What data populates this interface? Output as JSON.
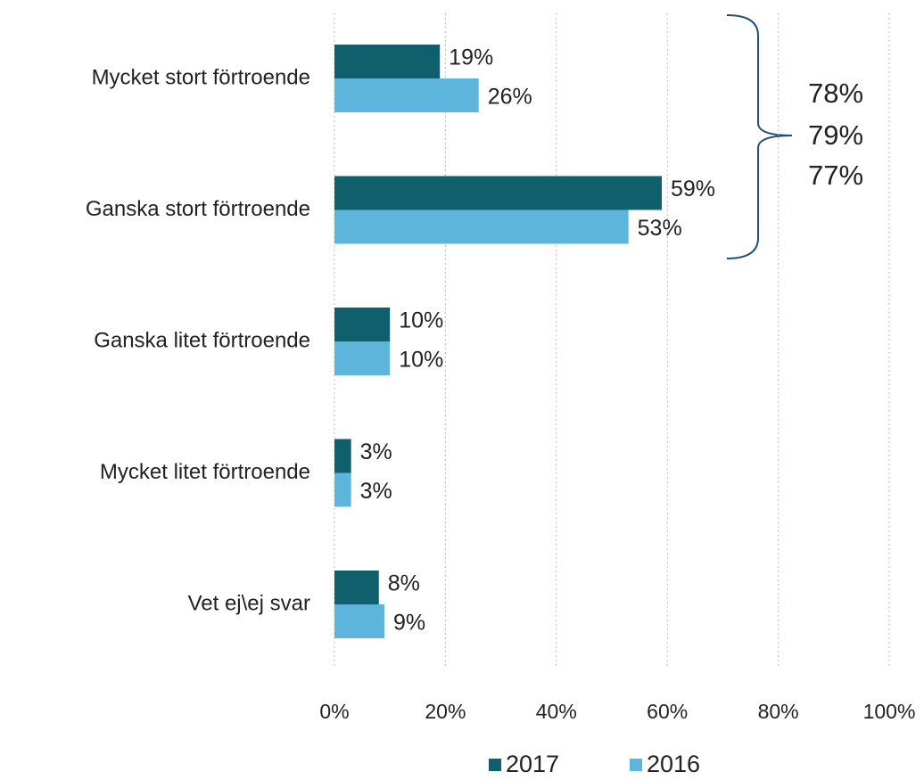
{
  "chart_data": {
    "type": "bar",
    "orientation": "horizontal",
    "categories": [
      "Mycket stort förtroende",
      "Ganska stort förtroende",
      "Ganska litet förtroende",
      "Mycket litet förtroende",
      "Vet ej\\ej svar"
    ],
    "series": [
      {
        "name": "2017",
        "color": "#0f5f6d",
        "values": [
          19,
          59,
          10,
          3,
          8
        ],
        "value_labels": [
          "19%",
          "59%",
          "10%",
          "3%",
          "8%"
        ]
      },
      {
        "name": "2016",
        "color": "#5db5dc",
        "values": [
          26,
          53,
          10,
          3,
          9
        ],
        "value_labels": [
          "26%",
          "53%",
          "10%",
          "3%",
          "9%"
        ]
      }
    ],
    "xlim": [
      0,
      100
    ],
    "xticks": [
      {
        "value": 0,
        "label": "0%"
      },
      {
        "value": 20,
        "label": "20%"
      },
      {
        "value": 40,
        "label": "40%"
      },
      {
        "value": 60,
        "label": "60%"
      },
      {
        "value": 80,
        "label": "80%"
      },
      {
        "value": 100,
        "label": "100%"
      }
    ],
    "grid": true,
    "legend": "bottom",
    "annotations": [
      "78%",
      "79%",
      "77%"
    ]
  }
}
